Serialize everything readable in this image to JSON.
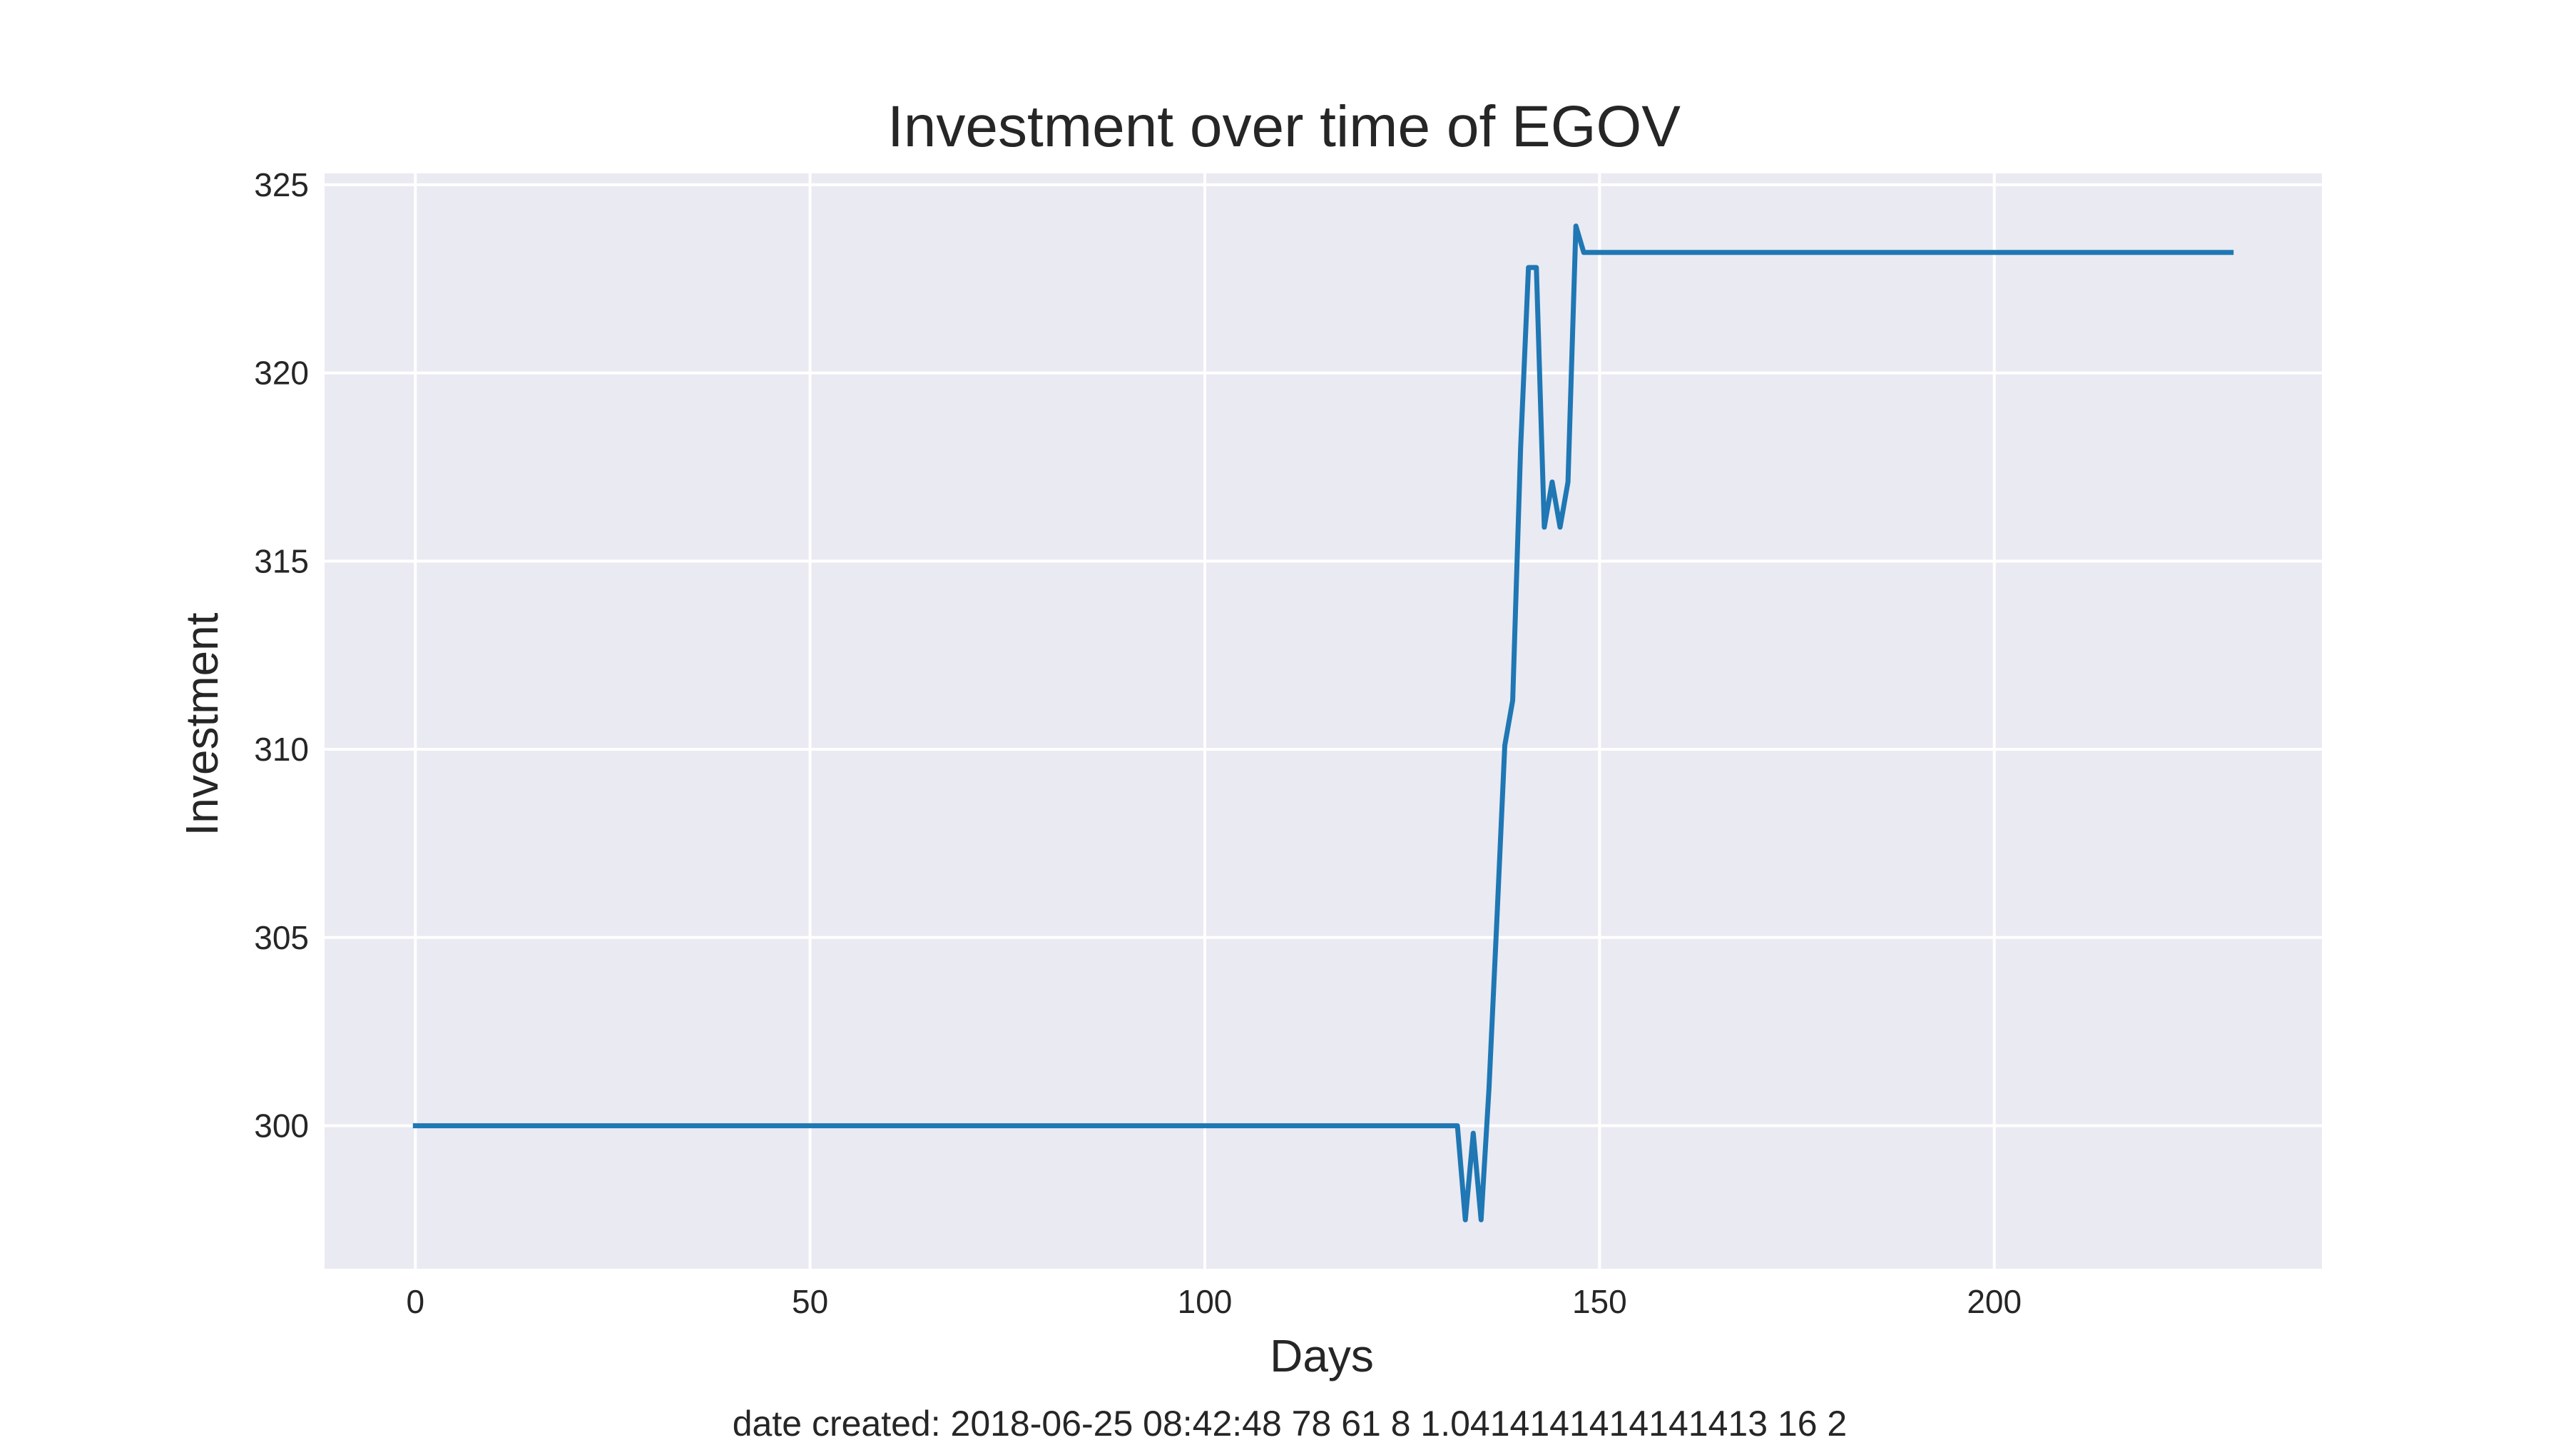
{
  "chart_data": {
    "type": "line",
    "title": "Investment over time of EGOV",
    "xlabel": "Days",
    "ylabel": "Investment",
    "xlim": [
      -11.5,
      241.5
    ],
    "ylim": [
      296.2,
      325.3
    ],
    "xticks": [
      0,
      50,
      100,
      150,
      200
    ],
    "yticks": [
      300,
      305,
      310,
      315,
      320,
      325
    ],
    "grid": true,
    "legend": "none",
    "colors": {
      "line": "#1f77b4",
      "plot_bg": "#eaeaf2",
      "grid": "#ffffff"
    },
    "series": [
      {
        "x": [
          0,
          132,
          133,
          134,
          135,
          136,
          137,
          138,
          139,
          140,
          141,
          142,
          143,
          144,
          145,
          146,
          147,
          148,
          230
        ],
        "y": [
          300.0,
          300.0,
          297.5,
          299.8,
          297.5,
          301.0,
          305.5,
          310.1,
          311.3,
          318.0,
          322.8,
          322.8,
          315.9,
          317.1,
          315.9,
          317.1,
          323.9,
          323.2,
          323.2
        ]
      }
    ]
  },
  "footer": {
    "text": "date created: 2018-06-25 08:42:48 78 61 8 1.0414141414141413 16 2"
  }
}
